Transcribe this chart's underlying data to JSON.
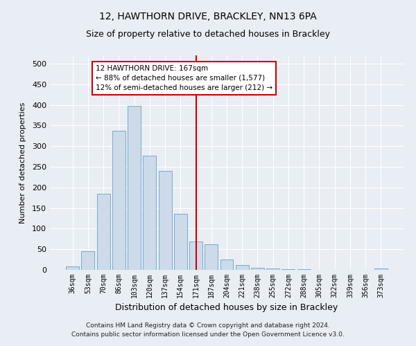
{
  "title": "12, HAWTHORN DRIVE, BRACKLEY, NN13 6PA",
  "subtitle": "Size of property relative to detached houses in Brackley",
  "xlabel": "Distribution of detached houses by size in Brackley",
  "ylabel": "Number of detached properties",
  "bar_labels": [
    "36sqm",
    "53sqm",
    "70sqm",
    "86sqm",
    "103sqm",
    "120sqm",
    "137sqm",
    "154sqm",
    "171sqm",
    "187sqm",
    "204sqm",
    "221sqm",
    "238sqm",
    "255sqm",
    "272sqm",
    "288sqm",
    "305sqm",
    "322sqm",
    "339sqm",
    "356sqm",
    "373sqm"
  ],
  "bar_values": [
    8,
    46,
    185,
    338,
    398,
    276,
    240,
    136,
    68,
    62,
    26,
    11,
    5,
    4,
    2,
    1,
    0,
    0,
    0,
    0,
    3
  ],
  "bar_color": "#ccdaea",
  "bar_edge_color": "#7aaac8",
  "vline_index": 8,
  "vline_color": "#cc0000",
  "annotation_title": "12 HAWTHORN DRIVE: 167sqm",
  "annotation_line1": "← 88% of detached houses are smaller (1,577)",
  "annotation_line2": "12% of semi-detached houses are larger (212) →",
  "annotation_box_color": "#cc0000",
  "ylim": [
    0,
    520
  ],
  "yticks": [
    0,
    50,
    100,
    150,
    200,
    250,
    300,
    350,
    400,
    450,
    500
  ],
  "footer_line1": "Contains HM Land Registry data © Crown copyright and database right 2024.",
  "footer_line2": "Contains public sector information licensed under the Open Government Licence v3.0.",
  "bg_color": "#e8eef4",
  "plot_bg_color": "#e8eef4",
  "grid_color": "#ffffff",
  "title_fontsize": 10,
  "subtitle_fontsize": 9
}
